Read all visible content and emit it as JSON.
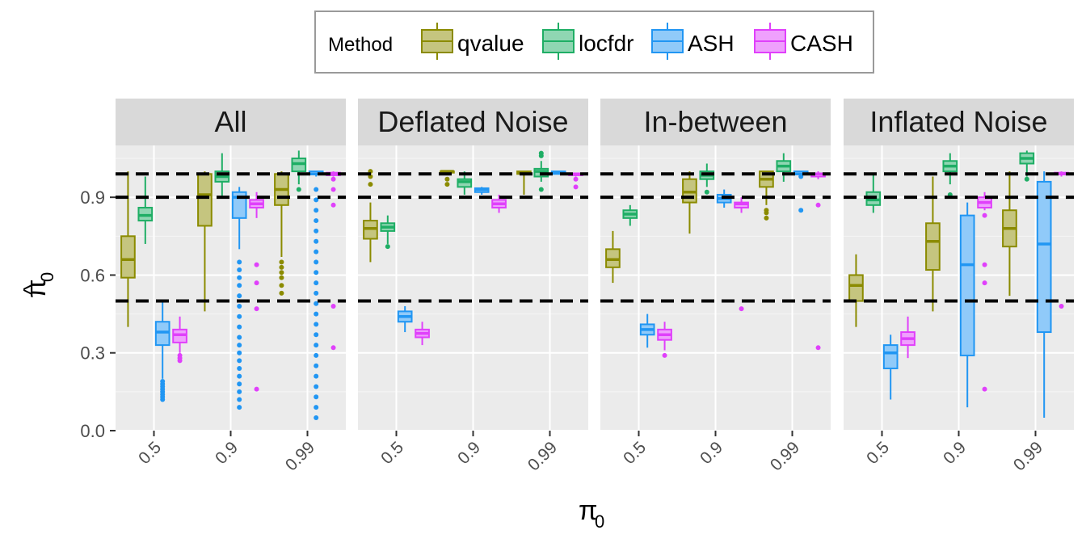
{
  "chart_data": {
    "type": "boxplot",
    "title": "",
    "xlabel": "π",
    "xlabel_sub": "0",
    "ylabel": "π",
    "ylabel_hat": "^",
    "ylabel_sub": "0",
    "ylim": [
      0,
      1.1
    ],
    "yticks": [
      0.0,
      0.3,
      0.6,
      0.9
    ],
    "ytick_labels": [
      "0.0",
      "0.3",
      "0.6",
      "0.9"
    ],
    "reference_lines": [
      0.5,
      0.9,
      0.99
    ],
    "legend": {
      "title": "Method",
      "placement": "top-center",
      "entries": [
        {
          "name": "qvalue",
          "color": "#8b8b00",
          "fill": "#c5c57f"
        },
        {
          "name": "locfdr",
          "color": "#1fae65",
          "fill": "#8fd6b2"
        },
        {
          "name": "ASH",
          "color": "#2196f3",
          "fill": "#90caf9"
        },
        {
          "name": "CASH",
          "color": "#e040fb",
          "fill": "#efa0fd"
        }
      ]
    },
    "categories": [
      "0.5",
      "0.9",
      "0.99"
    ],
    "facets": [
      {
        "label": "All",
        "groups": [
          {
            "category": "0.5",
            "boxes": [
              {
                "method": "qvalue",
                "min": 0.4,
                "q1": 0.59,
                "median": 0.66,
                "q3": 0.75,
                "max": 1.0,
                "outliers": []
              },
              {
                "method": "locfdr",
                "min": 0.72,
                "q1": 0.81,
                "median": 0.83,
                "q3": 0.86,
                "max": 0.98,
                "outliers": []
              },
              {
                "method": "ASH",
                "min": 0.2,
                "q1": 0.33,
                "median": 0.38,
                "q3": 0.42,
                "max": 0.5,
                "outliers": [
                  0.12,
                  0.13,
                  0.14,
                  0.15,
                  0.16,
                  0.17,
                  0.18,
                  0.19
                ]
              },
              {
                "method": "CASH",
                "min": 0.3,
                "q1": 0.34,
                "median": 0.37,
                "q3": 0.39,
                "max": 0.44,
                "outliers": [
                  0.27,
                  0.28,
                  0.29
                ]
              }
            ]
          },
          {
            "category": "0.9",
            "boxes": [
              {
                "method": "qvalue",
                "min": 0.46,
                "q1": 0.79,
                "median": 0.91,
                "q3": 0.99,
                "max": 1.0,
                "outliers": []
              },
              {
                "method": "locfdr",
                "min": 0.9,
                "q1": 0.96,
                "median": 0.98,
                "q3": 1.0,
                "max": 1.07,
                "outliers": []
              },
              {
                "method": "ASH",
                "min": 0.7,
                "q1": 0.82,
                "median": 0.9,
                "q3": 0.92,
                "max": 0.94,
                "outliers": [
                  0.09,
                  0.12,
                  0.15,
                  0.18,
                  0.21,
                  0.24,
                  0.27,
                  0.3,
                  0.33,
                  0.36,
                  0.4,
                  0.44,
                  0.48,
                  0.52,
                  0.56,
                  0.59,
                  0.62,
                  0.65
                ]
              },
              {
                "method": "CASH",
                "min": 0.82,
                "q1": 0.86,
                "median": 0.875,
                "q3": 0.89,
                "max": 0.92,
                "outliers": [
                  0.16,
                  0.47,
                  0.57,
                  0.64
                ]
              }
            ]
          },
          {
            "category": "0.99",
            "boxes": [
              {
                "method": "qvalue",
                "min": 0.67,
                "q1": 0.87,
                "median": 0.93,
                "q3": 0.99,
                "max": 1.0,
                "outliers": [
                  0.53,
                  0.56,
                  0.59,
                  0.61,
                  0.63,
                  0.65
                ]
              },
              {
                "method": "locfdr",
                "min": 0.95,
                "q1": 1.0,
                "median": 1.03,
                "q3": 1.05,
                "max": 1.08,
                "outliers": [
                  0.93
                ]
              },
              {
                "method": "ASH",
                "min": 0.98,
                "q1": 0.99,
                "median": 0.99,
                "q3": 1.0,
                "max": 1.0,
                "outliers": [
                  0.05,
                  0.09,
                  0.13,
                  0.17,
                  0.21,
                  0.25,
                  0.29,
                  0.33,
                  0.37,
                  0.41,
                  0.45,
                  0.49,
                  0.53,
                  0.57,
                  0.61,
                  0.65,
                  0.69,
                  0.73,
                  0.77,
                  0.81,
                  0.85,
                  0.89,
                  0.93
                ]
              },
              {
                "method": "CASH",
                "min": 0.98,
                "q1": 0.985,
                "median": 0.99,
                "q3": 0.995,
                "max": 1.0,
                "outliers": [
                  0.32,
                  0.48,
                  0.87,
                  0.93,
                  0.97
                ]
              }
            ]
          }
        ]
      },
      {
        "label": "Deflated Noise",
        "groups": [
          {
            "category": "0.5",
            "boxes": [
              {
                "method": "qvalue",
                "min": 0.65,
                "q1": 0.74,
                "median": 0.78,
                "q3": 0.81,
                "max": 0.88,
                "outliers": [
                  0.95,
                  0.98,
                  1.0
                ]
              },
              {
                "method": "locfdr",
                "min": 0.72,
                "q1": 0.77,
                "median": 0.785,
                "q3": 0.8,
                "max": 0.83,
                "outliers": [
                  0.71
                ]
              },
              {
                "method": "ASH",
                "min": 0.38,
                "q1": 0.42,
                "median": 0.44,
                "q3": 0.46,
                "max": 0.48,
                "outliers": []
              },
              {
                "method": "CASH",
                "min": 0.33,
                "q1": 0.36,
                "median": 0.375,
                "q3": 0.39,
                "max": 0.42,
                "outliers": []
              }
            ]
          },
          {
            "category": "0.9",
            "boxes": [
              {
                "method": "qvalue",
                "min": 0.99,
                "q1": 0.995,
                "median": 1.0,
                "q3": 1.0,
                "max": 1.0,
                "outliers": [
                  0.95,
                  0.97
                ]
              },
              {
                "method": "locfdr",
                "min": 0.91,
                "q1": 0.94,
                "median": 0.96,
                "q3": 0.97,
                "max": 1.0,
                "outliers": []
              },
              {
                "method": "ASH",
                "min": 0.91,
                "q1": 0.92,
                "median": 0.93,
                "q3": 0.935,
                "max": 0.94,
                "outliers": []
              },
              {
                "method": "CASH",
                "min": 0.84,
                "q1": 0.86,
                "median": 0.875,
                "q3": 0.89,
                "max": 0.91,
                "outliers": []
              }
            ]
          },
          {
            "category": "0.99",
            "boxes": [
              {
                "method": "qvalue",
                "min": 0.91,
                "q1": 0.99,
                "median": 0.995,
                "q3": 1.0,
                "max": 1.0,
                "outliers": []
              },
              {
                "method": "locfdr",
                "min": 0.96,
                "q1": 0.98,
                "median": 1.0,
                "q3": 1.01,
                "max": 1.04,
                "outliers": [
                  0.93,
                  1.06,
                  1.07
                ]
              },
              {
                "method": "ASH",
                "min": 0.99,
                "q1": 0.99,
                "median": 0.995,
                "q3": 1.0,
                "max": 1.0,
                "outliers": []
              },
              {
                "method": "CASH",
                "min": 0.98,
                "q1": 0.985,
                "median": 0.99,
                "q3": 0.99,
                "max": 0.995,
                "outliers": [
                  0.94,
                  0.97
                ]
              }
            ]
          }
        ]
      },
      {
        "label": "In-between",
        "groups": [
          {
            "category": "0.5",
            "boxes": [
              {
                "method": "qvalue",
                "min": 0.57,
                "q1": 0.63,
                "median": 0.66,
                "q3": 0.7,
                "max": 0.77,
                "outliers": []
              },
              {
                "method": "locfdr",
                "min": 0.79,
                "q1": 0.82,
                "median": 0.835,
                "q3": 0.85,
                "max": 0.87,
                "outliers": []
              },
              {
                "method": "ASH",
                "min": 0.32,
                "q1": 0.37,
                "median": 0.39,
                "q3": 0.41,
                "max": 0.45,
                "outliers": []
              },
              {
                "method": "CASH",
                "min": 0.31,
                "q1": 0.35,
                "median": 0.37,
                "q3": 0.39,
                "max": 0.42,
                "outliers": [
                  0.29
                ]
              }
            ]
          },
          {
            "category": "0.9",
            "boxes": [
              {
                "method": "qvalue",
                "min": 0.76,
                "q1": 0.88,
                "median": 0.92,
                "q3": 0.97,
                "max": 1.0,
                "outliers": []
              },
              {
                "method": "locfdr",
                "min": 0.94,
                "q1": 0.97,
                "median": 0.985,
                "q3": 1.0,
                "max": 1.03,
                "outliers": [
                  0.92
                ]
              },
              {
                "method": "ASH",
                "min": 0.86,
                "q1": 0.88,
                "median": 0.895,
                "q3": 0.91,
                "max": 0.93,
                "outliers": []
              },
              {
                "method": "CASH",
                "min": 0.84,
                "q1": 0.86,
                "median": 0.875,
                "q3": 0.88,
                "max": 0.9,
                "outliers": [
                  0.47
                ]
              }
            ]
          },
          {
            "category": "0.99",
            "boxes": [
              {
                "method": "qvalue",
                "min": 0.87,
                "q1": 0.94,
                "median": 0.97,
                "q3": 1.0,
                "max": 1.0,
                "outliers": [
                  0.82,
                  0.84,
                  0.85
                ]
              },
              {
                "method": "locfdr",
                "min": 0.96,
                "q1": 1.0,
                "median": 1.02,
                "q3": 1.04,
                "max": 1.07,
                "outliers": []
              },
              {
                "method": "ASH",
                "min": 0.98,
                "q1": 0.99,
                "median": 0.99,
                "q3": 1.0,
                "max": 1.0,
                "outliers": [
                  0.85,
                  0.98
                ]
              },
              {
                "method": "CASH",
                "min": 0.97,
                "q1": 0.98,
                "median": 0.99,
                "q3": 0.99,
                "max": 1.0,
                "outliers": [
                  0.32,
                  0.87
                ]
              }
            ]
          }
        ]
      },
      {
        "label": "Inflated Noise",
        "groups": [
          {
            "category": "0.5",
            "boxes": [
              {
                "method": "qvalue",
                "min": 0.4,
                "q1": 0.5,
                "median": 0.56,
                "q3": 0.6,
                "max": 0.68,
                "outliers": []
              },
              {
                "method": "locfdr",
                "min": 0.84,
                "q1": 0.87,
                "median": 0.89,
                "q3": 0.92,
                "max": 0.99,
                "outliers": []
              },
              {
                "method": "ASH",
                "min": 0.12,
                "q1": 0.24,
                "median": 0.3,
                "q3": 0.33,
                "max": 0.37,
                "outliers": []
              },
              {
                "method": "CASH",
                "min": 0.28,
                "q1": 0.33,
                "median": 0.355,
                "q3": 0.38,
                "max": 0.44,
                "outliers": []
              }
            ]
          },
          {
            "category": "0.9",
            "boxes": [
              {
                "method": "qvalue",
                "min": 0.46,
                "q1": 0.62,
                "median": 0.73,
                "q3": 0.8,
                "max": 0.98,
                "outliers": []
              },
              {
                "method": "locfdr",
                "min": 0.95,
                "q1": 1.0,
                "median": 1.02,
                "q3": 1.04,
                "max": 1.07,
                "outliers": [
                  0.91
                ]
              },
              {
                "method": "ASH",
                "min": 0.09,
                "q1": 0.29,
                "median": 0.64,
                "q3": 0.83,
                "max": 0.88,
                "outliers": []
              },
              {
                "method": "CASH",
                "min": 0.85,
                "q1": 0.86,
                "median": 0.88,
                "q3": 0.9,
                "max": 0.92,
                "outliers": [
                  0.16,
                  0.57,
                  0.64,
                  0.83
                ]
              }
            ]
          },
          {
            "category": "0.99",
            "boxes": [
              {
                "method": "qvalue",
                "min": 0.52,
                "q1": 0.71,
                "median": 0.78,
                "q3": 0.85,
                "max": 1.0,
                "outliers": []
              },
              {
                "method": "locfdr",
                "min": 0.98,
                "q1": 1.03,
                "median": 1.05,
                "q3": 1.07,
                "max": 1.08,
                "outliers": [
                  0.97
                ]
              },
              {
                "method": "ASH",
                "min": 0.05,
                "q1": 0.38,
                "median": 0.72,
                "q3": 0.96,
                "max": 1.0,
                "outliers": []
              },
              {
                "method": "CASH",
                "min": 0.98,
                "q1": 0.99,
                "median": 0.99,
                "q3": 0.995,
                "max": 1.0,
                "outliers": [
                  0.48
                ]
              }
            ]
          }
        ]
      }
    ]
  }
}
